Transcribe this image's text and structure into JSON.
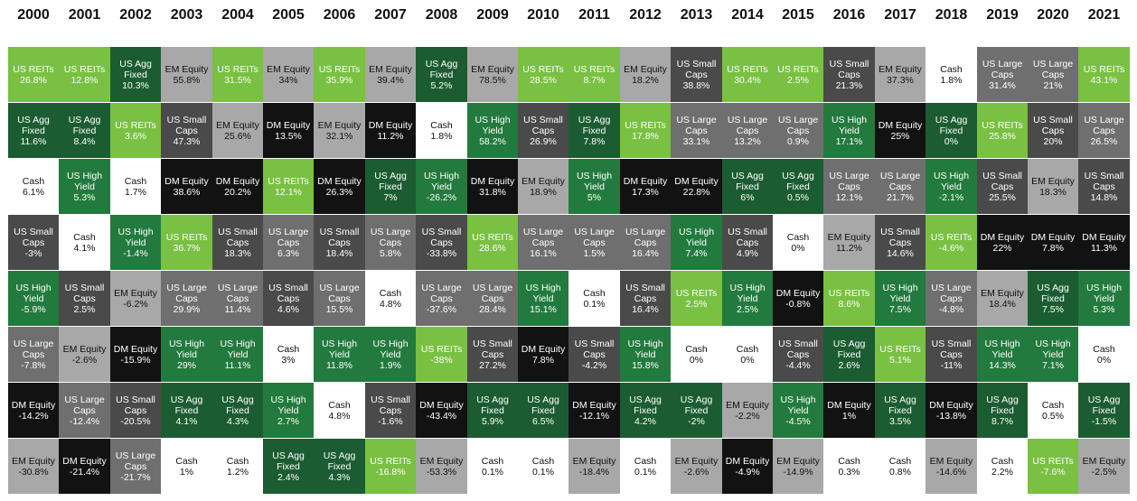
{
  "chart_data": {
    "type": "table",
    "title": "",
    "years": [
      "2000",
      "2001",
      "2002",
      "2003",
      "2004",
      "2005",
      "2006",
      "2007",
      "2008",
      "2009",
      "2010",
      "2011",
      "2012",
      "2013",
      "2014",
      "2015",
      "2016",
      "2017",
      "2018",
      "2019",
      "2020",
      "2021"
    ],
    "asset_class_colors": {
      "US REITs": "#79c043",
      "US Agg Fixed": "#1c5c32",
      "US High Yield": "#237a3e",
      "US Small Caps": "#4a4a4a",
      "US Large Caps": "#6f6f6f",
      "EM Equity": "#a8a8a8",
      "DM Equity": "#121212",
      "Cash": "#ffffff"
    },
    "columns": [
      [
        [
          "US REITs",
          "26.8%"
        ],
        [
          "US Agg Fixed",
          "11.6%"
        ],
        [
          "Cash",
          "6.1%"
        ],
        [
          "US Small Caps",
          "-3%"
        ],
        [
          "US High Yield",
          "-5.9%"
        ],
        [
          "US Large Caps",
          "-7.8%"
        ],
        [
          "DM Equity",
          "-14.2%"
        ],
        [
          "EM Equity",
          "-30.8%"
        ]
      ],
      [
        [
          "US REITs",
          "12.8%"
        ],
        [
          "US Agg Fixed",
          "8.4%"
        ],
        [
          "US High Yield",
          "5.3%"
        ],
        [
          "Cash",
          "4.1%"
        ],
        [
          "US Small Caps",
          "2.5%"
        ],
        [
          "EM Equity",
          "-2.6%"
        ],
        [
          "US Large Caps",
          "-12.4%"
        ],
        [
          "DM Equity",
          "-21.4%"
        ]
      ],
      [
        [
          "US Agg Fixed",
          "10.3%"
        ],
        [
          "US REITs",
          "3.6%"
        ],
        [
          "Cash",
          "1.7%"
        ],
        [
          "US High Yield",
          "-1.4%"
        ],
        [
          "EM Equity",
          "-6.2%"
        ],
        [
          "DM Equity",
          "-15.9%"
        ],
        [
          "US Small Caps",
          "-20.5%"
        ],
        [
          "US Large Caps",
          "-21.7%"
        ]
      ],
      [
        [
          "EM Equity",
          "55.8%"
        ],
        [
          "US Small Caps",
          "47.3%"
        ],
        [
          "DM Equity",
          "38.6%"
        ],
        [
          "US REITs",
          "36.7%"
        ],
        [
          "US Large Caps",
          "29.9%"
        ],
        [
          "US High Yield",
          "29%"
        ],
        [
          "US Agg Fixed",
          "4.1%"
        ],
        [
          "Cash",
          "1%"
        ]
      ],
      [
        [
          "US REITs",
          "31.5%"
        ],
        [
          "EM Equity",
          "25.6%"
        ],
        [
          "DM Equity",
          "20.2%"
        ],
        [
          "US Small Caps",
          "18.3%"
        ],
        [
          "US Large Caps",
          "11.4%"
        ],
        [
          "US High Yield",
          "11.1%"
        ],
        [
          "US Agg Fixed",
          "4.3%"
        ],
        [
          "Cash",
          "1.2%"
        ]
      ],
      [
        [
          "EM Equity",
          "34%"
        ],
        [
          "DM Equity",
          "13.5%"
        ],
        [
          "US REITs",
          "12.1%"
        ],
        [
          "US Large Caps",
          "6.3%"
        ],
        [
          "US Small Caps",
          "4.6%"
        ],
        [
          "Cash",
          "3%"
        ],
        [
          "US High Yield",
          "2.7%"
        ],
        [
          "US Agg Fixed",
          "2.4%"
        ]
      ],
      [
        [
          "US REITs",
          "35.9%"
        ],
        [
          "EM Equity",
          "32.1%"
        ],
        [
          "DM Equity",
          "26.3%"
        ],
        [
          "US Small Caps",
          "18.4%"
        ],
        [
          "US Large Caps",
          "15.5%"
        ],
        [
          "US High Yield",
          "11.8%"
        ],
        [
          "Cash",
          "4.8%"
        ],
        [
          "US Agg Fixed",
          "4.3%"
        ]
      ],
      [
        [
          "EM Equity",
          "39.4%"
        ],
        [
          "DM Equity",
          "11.2%"
        ],
        [
          "US Agg Fixed",
          "7%"
        ],
        [
          "US Large Caps",
          "5.8%"
        ],
        [
          "Cash",
          "4.8%"
        ],
        [
          "US High Yield",
          "1.9%"
        ],
        [
          "US Small Caps",
          "-1.6%"
        ],
        [
          "US REITs",
          "-16.8%"
        ]
      ],
      [
        [
          "US Agg Fixed",
          "5.2%"
        ],
        [
          "Cash",
          "1.8%"
        ],
        [
          "US High Yield",
          "-26.2%"
        ],
        [
          "US Small Caps",
          "-33.8%"
        ],
        [
          "US Large Caps",
          "-37.6%"
        ],
        [
          "US REITs",
          "-38%"
        ],
        [
          "DM Equity",
          "-43.4%"
        ],
        [
          "EM Equity",
          "-53.3%"
        ]
      ],
      [
        [
          "EM Equity",
          "78.5%"
        ],
        [
          "US High Yield",
          "58.2%"
        ],
        [
          "DM Equity",
          "31.8%"
        ],
        [
          "US REITs",
          "28.6%"
        ],
        [
          "US Large Caps",
          "28.4%"
        ],
        [
          "US Small Caps",
          "27.2%"
        ],
        [
          "US Agg Fixed",
          "5.9%"
        ],
        [
          "Cash",
          "0.1%"
        ]
      ],
      [
        [
          "US REITs",
          "28.5%"
        ],
        [
          "US Small Caps",
          "26.9%"
        ],
        [
          "EM Equity",
          "18.9%"
        ],
        [
          "US Large Caps",
          "16.1%"
        ],
        [
          "US High Yield",
          "15.1%"
        ],
        [
          "DM Equity",
          "7.8%"
        ],
        [
          "US Agg Fixed",
          "6.5%"
        ],
        [
          "Cash",
          "0.1%"
        ]
      ],
      [
        [
          "US REITs",
          "8.7%"
        ],
        [
          "US Agg Fixed",
          "7.8%"
        ],
        [
          "US High Yield",
          "5%"
        ],
        [
          "US Large Caps",
          "1.5%"
        ],
        [
          "Cash",
          "0.1%"
        ],
        [
          "US Small Caps",
          "-4.2%"
        ],
        [
          "DM Equity",
          "-12.1%"
        ],
        [
          "EM Equity",
          "-18.4%"
        ]
      ],
      [
        [
          "EM Equity",
          "18.2%"
        ],
        [
          "US REITs",
          "17.8%"
        ],
        [
          "DM Equity",
          "17.3%"
        ],
        [
          "US Large Caps",
          "16.4%"
        ],
        [
          "US Small Caps",
          "16.4%"
        ],
        [
          "US High Yield",
          "15.8%"
        ],
        [
          "US Agg Fixed",
          "4.2%"
        ],
        [
          "Cash",
          "0.1%"
        ]
      ],
      [
        [
          "US Small Caps",
          "38.8%"
        ],
        [
          "US Large Caps",
          "33.1%"
        ],
        [
          "DM Equity",
          "22.8%"
        ],
        [
          "US High Yield",
          "7.4%"
        ],
        [
          "US REITs",
          "2.5%"
        ],
        [
          "Cash",
          "0%"
        ],
        [
          "US Agg Fixed",
          "-2%"
        ],
        [
          "EM Equity",
          "-2.6%"
        ]
      ],
      [
        [
          "US REITs",
          "30.4%"
        ],
        [
          "US Large Caps",
          "13.2%"
        ],
        [
          "US Agg Fixed",
          "6%"
        ],
        [
          "US Small Caps",
          "4.9%"
        ],
        [
          "US High Yield",
          "2.5%"
        ],
        [
          "Cash",
          "0%"
        ],
        [
          "EM Equity",
          "-2.2%"
        ],
        [
          "DM Equity",
          "-4.9%"
        ]
      ],
      [
        [
          "US REITs",
          "2.5%"
        ],
        [
          "US Large Caps",
          "0.9%"
        ],
        [
          "US Agg Fixed",
          "0.5%"
        ],
        [
          "Cash",
          "0%"
        ],
        [
          "DM Equity",
          "-0.8%"
        ],
        [
          "US Small Caps",
          "-4.4%"
        ],
        [
          "US High Yield",
          "-4.5%"
        ],
        [
          "EM Equity",
          "-14.9%"
        ]
      ],
      [
        [
          "US Small Caps",
          "21.3%"
        ],
        [
          "US High Yield",
          "17.1%"
        ],
        [
          "US Large Caps",
          "12.1%"
        ],
        [
          "EM Equity",
          "11.2%"
        ],
        [
          "US REITs",
          "8.6%"
        ],
        [
          "US Agg Fixed",
          "2.6%"
        ],
        [
          "DM Equity",
          "1%"
        ],
        [
          "Cash",
          "0.3%"
        ]
      ],
      [
        [
          "EM Equity",
          "37.3%"
        ],
        [
          "DM Equity",
          "25%"
        ],
        [
          "US Large Caps",
          "21.7%"
        ],
        [
          "US Small Caps",
          "14.6%"
        ],
        [
          "US High Yield",
          "7.5%"
        ],
        [
          "US REITs",
          "5.1%"
        ],
        [
          "US Agg Fixed",
          "3.5%"
        ],
        [
          "Cash",
          "0.8%"
        ]
      ],
      [
        [
          "Cash",
          "1.8%"
        ],
        [
          "US Agg Fixed",
          "0%"
        ],
        [
          "US High Yield",
          "-2.1%"
        ],
        [
          "US REITs",
          "-4.6%"
        ],
        [
          "US Large Caps",
          "-4.8%"
        ],
        [
          "US Small Caps",
          "-11%"
        ],
        [
          "DM Equity",
          "-13.8%"
        ],
        [
          "EM Equity",
          "-14.6%"
        ]
      ],
      [
        [
          "US Large Caps",
          "31.4%"
        ],
        [
          "US REITs",
          "25.8%"
        ],
        [
          "US Small Caps",
          "25.5%"
        ],
        [
          "DM Equity",
          "22%"
        ],
        [
          "EM Equity",
          "18.4%"
        ],
        [
          "US High Yield",
          "14.3%"
        ],
        [
          "US Agg Fixed",
          "8.7%"
        ],
        [
          "Cash",
          "2.2%"
        ]
      ],
      [
        [
          "US Large Caps",
          "21%"
        ],
        [
          "US Small Caps",
          "20%"
        ],
        [
          "EM Equity",
          "18.3%"
        ],
        [
          "DM Equity",
          "7.8%"
        ],
        [
          "US Agg Fixed",
          "7.5%"
        ],
        [
          "US High Yield",
          "7.1%"
        ],
        [
          "Cash",
          "0.5%"
        ],
        [
          "US REITs",
          "-7.6%"
        ]
      ],
      [
        [
          "US REITs",
          "43.1%"
        ],
        [
          "US Large Caps",
          "26.5%"
        ],
        [
          "US Small Caps",
          "14.8%"
        ],
        [
          "DM Equity",
          "11.3%"
        ],
        [
          "US High Yield",
          "5.3%"
        ],
        [
          "Cash",
          "0%"
        ],
        [
          "US Agg Fixed",
          "-1.5%"
        ],
        [
          "EM Equity",
          "-2.5%"
        ]
      ]
    ]
  }
}
